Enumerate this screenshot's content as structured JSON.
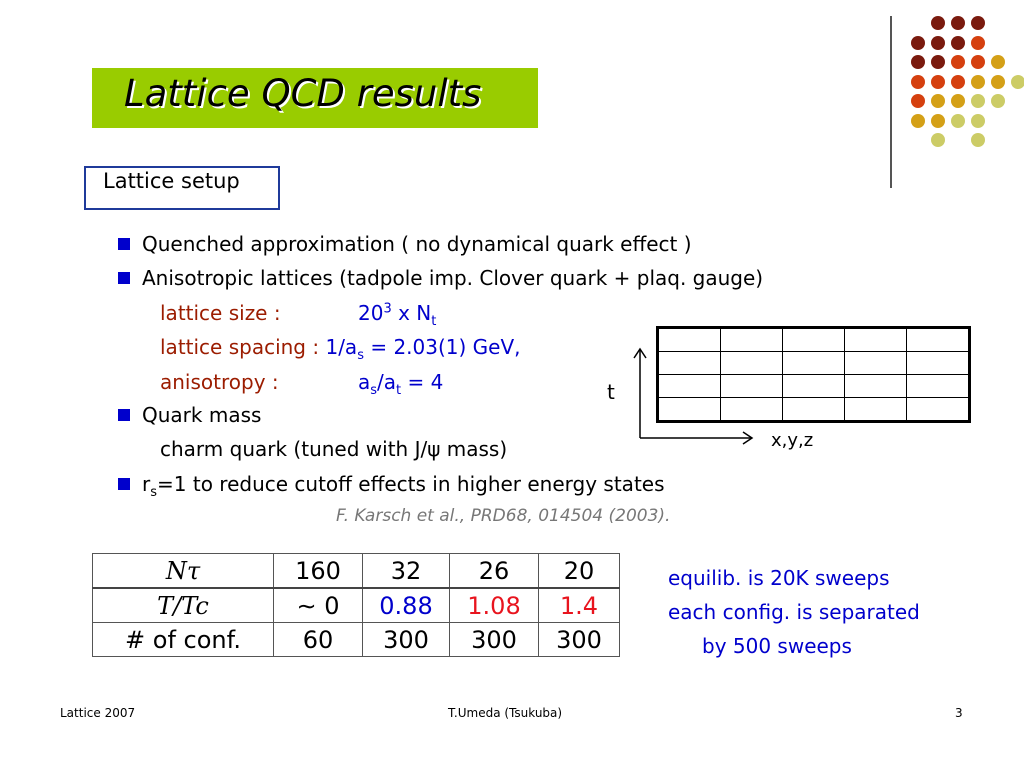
{
  "title": "Lattice QCD results",
  "setup_label": "Lattice setup",
  "bullets": {
    "quenched": "Quenched approximation ( no dynamical quark effect )",
    "anisotropic": "Anisotropic lattices  (tadpole imp. Clover quark + plaq. gauge)",
    "quark_mass": "Quark mass",
    "rs": "=1 to reduce cutoff effects in higher energy states"
  },
  "params": {
    "size_label": "lattice size :",
    "size_base": "20",
    "size_exp": "3",
    "size_mid": " x N",
    "size_sub": "t",
    "spacing_label": "lattice spacing :",
    "spacing_pre": " 1/a",
    "spacing_sub": "s",
    "spacing_post": " = 2.03(1) GeV,",
    "aniso_label": "anisotropy :",
    "aniso_a1": "a",
    "aniso_s": "s",
    "aniso_slash": "/a",
    "aniso_t": "t",
    "aniso_post": " = 4",
    "charm": "charm quark (tuned with J/ψ  mass)",
    "rs_r": "r",
    "rs_s": "s"
  },
  "citation": "F. Karsch et al., PRD68, 014504 (2003).",
  "diagram": {
    "t_label": "t",
    "xyz_label": "x,y,z",
    "rows": 4,
    "cols": 5
  },
  "table": {
    "row1_header": "Nτ",
    "row1": [
      "160",
      "32",
      "26",
      "20"
    ],
    "row2_header": "T/Tc",
    "row2": [
      "∼ 0",
      "0.88",
      "1.08",
      "1.4"
    ],
    "row2_colors": [
      "#000000",
      "#0000cc",
      "#e8141e",
      "#e8141e"
    ],
    "row3_header": "# of conf.",
    "row3": [
      "60",
      "300",
      "300",
      "300"
    ]
  },
  "notes": [
    "equilib. is 20K sweeps",
    "each config. is separated",
    "by 500 sweeps"
  ],
  "footer": {
    "left": "Lattice 2007",
    "center": "T.Umeda (Tsukuba)",
    "right": "3"
  },
  "colors": {
    "title_bg": "#99cc00",
    "accent_blue": "#0000cc",
    "label_red": "#9b1c00",
    "dots": [
      "#7a1a0e",
      "#d5400f",
      "#d4a017",
      "#cccc66"
    ]
  }
}
